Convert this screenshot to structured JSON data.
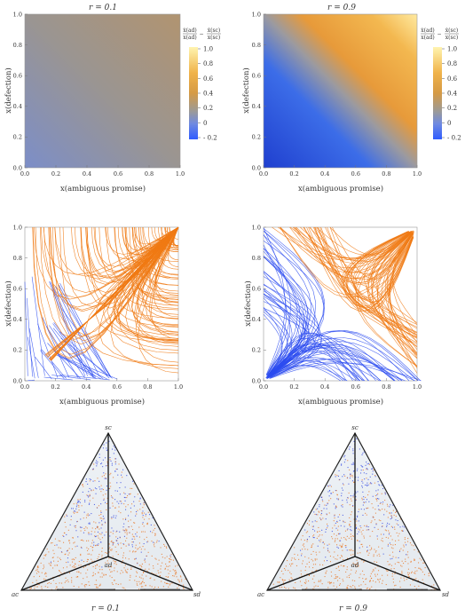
{
  "heatmaps": [
    {
      "title": "r = 0.1",
      "xlabel": "x(ambiguous promise)",
      "ylabel": "x(defection)",
      "x_ticks": [
        "0.0",
        "0.2",
        "0.4",
        "0.6",
        "0.8",
        "1.0"
      ],
      "y_ticks": [
        "0.0",
        "0.2",
        "0.4",
        "0.6",
        "0.8",
        "1.0"
      ],
      "colorbar_label_num": "ẋ(ad) / x(ad) − ẋ(sc) / x(sc)",
      "colorbar_num_left": "ẋ(ad)",
      "colorbar_den_left": "x(ad)",
      "colorbar_num_right": "ẋ(sc)",
      "colorbar_den_right": "x(sc)",
      "colorbar_minus": "−",
      "colorbar_ticks": [
        "1.0",
        "0.8",
        "0.6",
        "0.4",
        "0.2",
        "0",
        "- 0.2"
      ],
      "colors": {
        "low": "#2f62ff",
        "mid": "#999999",
        "high": "#fff2a8",
        "orange": "#e89a2a"
      }
    },
    {
      "title": "r = 0.9",
      "xlabel": "x(ambiguous promise)",
      "ylabel": "x(defection)",
      "x_ticks": [
        "0.0",
        "0.2",
        "0.4",
        "0.6",
        "0.8",
        "1.0"
      ],
      "y_ticks": [
        "0.0",
        "0.2",
        "0.4",
        "0.6",
        "0.8",
        "1.0"
      ],
      "colorbar_num_left": "ẋ(ad)",
      "colorbar_den_left": "x(ad)",
      "colorbar_num_right": "ẋ(sc)",
      "colorbar_den_right": "x(sc)",
      "colorbar_minus": "−",
      "colorbar_ticks": [
        "1.0",
        "0.8",
        "0.6",
        "0.4",
        "0.2",
        "0",
        "- 0.2"
      ]
    }
  ],
  "streamplots": [
    {
      "xlabel": "x(ambiguous promise)",
      "ylabel": "x(defection)",
      "x_ticks": [
        "0.0",
        "0.2",
        "0.4",
        "0.6",
        "0.8",
        "1.0"
      ],
      "y_ticks": [
        "0.0",
        "0.2",
        "0.4",
        "0.6",
        "0.8",
        "1.0"
      ],
      "colors": {
        "blue": "#2b4bf0",
        "orange": "#f07a14"
      }
    },
    {
      "xlabel": "x(ambiguous promise)",
      "ylabel": "x(defection)",
      "x_ticks": [
        "0.0",
        "0.2",
        "0.4",
        "0.6",
        "0.8",
        "1.0"
      ],
      "y_ticks": [
        "0.0",
        "0.2",
        "0.4",
        "0.6",
        "0.8",
        "1.0"
      ]
    }
  ],
  "simplex": [
    {
      "caption": "r = 0.1",
      "vertex_top": "sc",
      "vertex_center": "ad",
      "vertex_left": "ac",
      "vertex_right": "sd"
    },
    {
      "caption": "r = 0.9",
      "vertex_top": "sc",
      "vertex_center": "ad",
      "vertex_left": "ac",
      "vertex_right": "sd"
    }
  ],
  "chart_data": [
    {
      "type": "heatmap",
      "title": "r = 0.1",
      "xlabel": "x(ambiguous promise)",
      "ylabel": "x(defection)",
      "xlim": [
        0,
        1
      ],
      "ylim": [
        0,
        1
      ],
      "colorbar_range": [
        -0.2,
        1.0
      ],
      "description_values": "nearly uniform field around 0.15–0.25 (grey-orange)"
    },
    {
      "type": "heatmap",
      "title": "r = 0.9",
      "xlabel": "x(ambiguous promise)",
      "ylabel": "x(defection)",
      "xlim": [
        0,
        1
      ],
      "ylim": [
        0,
        1
      ],
      "colorbar_range": [
        -0.2,
        1.0
      ]
    },
    {
      "type": "line",
      "xlabel": "x(ambiguous promise)",
      "ylabel": "x(defection)",
      "xlim": [
        0,
        1
      ],
      "ylim": [
        0,
        1
      ]
    },
    {
      "type": "line",
      "xlabel": "x(ambiguous promise)",
      "ylabel": "x(defection)",
      "xlim": [
        0,
        1
      ],
      "ylim": [
        0,
        1
      ]
    }
  ]
}
